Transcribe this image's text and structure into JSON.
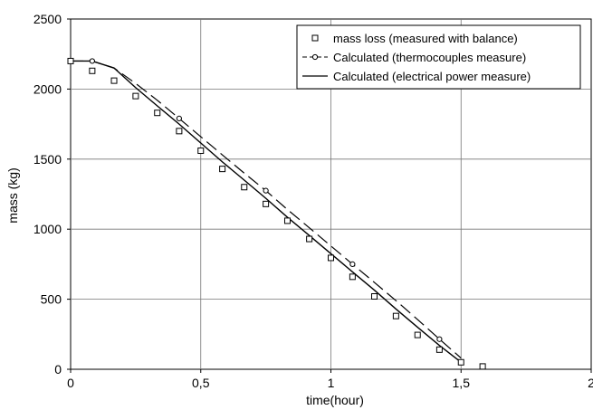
{
  "chart_data": {
    "type": "line",
    "title": "",
    "xlabel": "time(hour)",
    "ylabel": "mass (kg)",
    "xlim": [
      0,
      2
    ],
    "ylim": [
      0,
      2500
    ],
    "x_ticks": [
      "0",
      "0,5",
      "1",
      "1,5",
      "2"
    ],
    "y_ticks": [
      "0",
      "500",
      "1000",
      "1500",
      "2000",
      "2500"
    ],
    "grid": true,
    "legend_position": "top-right",
    "series": [
      {
        "name": "mass loss (measured with balance)",
        "style": "markers-square",
        "color": "#000000",
        "points": [
          [
            0,
            2200
          ],
          [
            0.083,
            2130
          ],
          [
            0.167,
            2060
          ],
          [
            0.25,
            1950
          ],
          [
            0.333,
            1830
          ],
          [
            0.417,
            1700
          ],
          [
            0.5,
            1560
          ],
          [
            0.583,
            1430
          ],
          [
            0.667,
            1300
          ],
          [
            0.75,
            1180
          ],
          [
            0.833,
            1060
          ],
          [
            0.917,
            930
          ],
          [
            1.0,
            795
          ],
          [
            1.083,
            660
          ],
          [
            1.167,
            520
          ],
          [
            1.25,
            380
          ],
          [
            1.333,
            245
          ],
          [
            1.417,
            140
          ],
          [
            1.5,
            50
          ],
          [
            1.583,
            20
          ]
        ]
      },
      {
        "name": "Calculated (thermocouples measure)",
        "style": "dashed-line-circle-markers",
        "color": "#000000",
        "points": [
          [
            0,
            2200
          ],
          [
            0.083,
            2200
          ],
          [
            0.167,
            2150
          ],
          [
            0.25,
            2040
          ],
          [
            0.333,
            1920
          ],
          [
            0.417,
            1790
          ],
          [
            0.5,
            1660
          ],
          [
            0.583,
            1530
          ],
          [
            0.667,
            1400
          ],
          [
            0.75,
            1275
          ],
          [
            0.833,
            1140
          ],
          [
            0.917,
            1010
          ],
          [
            1.0,
            880
          ],
          [
            1.083,
            750
          ],
          [
            1.167,
            620
          ],
          [
            1.25,
            490
          ],
          [
            1.333,
            355
          ],
          [
            1.417,
            215
          ],
          [
            1.5,
            80
          ]
        ],
        "marker_points": [
          [
            0.083,
            2200
          ],
          [
            0.417,
            1790
          ],
          [
            0.75,
            1275
          ],
          [
            1.083,
            750
          ],
          [
            1.417,
            215
          ]
        ]
      },
      {
        "name": "Calculated (electrical power measure)",
        "style": "solid-line",
        "color": "#000000",
        "points": [
          [
            0,
            2200
          ],
          [
            0.083,
            2200
          ],
          [
            0.167,
            2150
          ],
          [
            0.25,
            2010
          ],
          [
            0.333,
            1880
          ],
          [
            0.417,
            1750
          ],
          [
            0.5,
            1615
          ],
          [
            0.583,
            1480
          ],
          [
            0.667,
            1350
          ],
          [
            0.75,
            1220
          ],
          [
            0.833,
            1085
          ],
          [
            0.917,
            955
          ],
          [
            1.0,
            825
          ],
          [
            1.083,
            695
          ],
          [
            1.167,
            565
          ],
          [
            1.25,
            430
          ],
          [
            1.333,
            300
          ],
          [
            1.417,
            170
          ],
          [
            1.5,
            50
          ]
        ]
      }
    ]
  }
}
